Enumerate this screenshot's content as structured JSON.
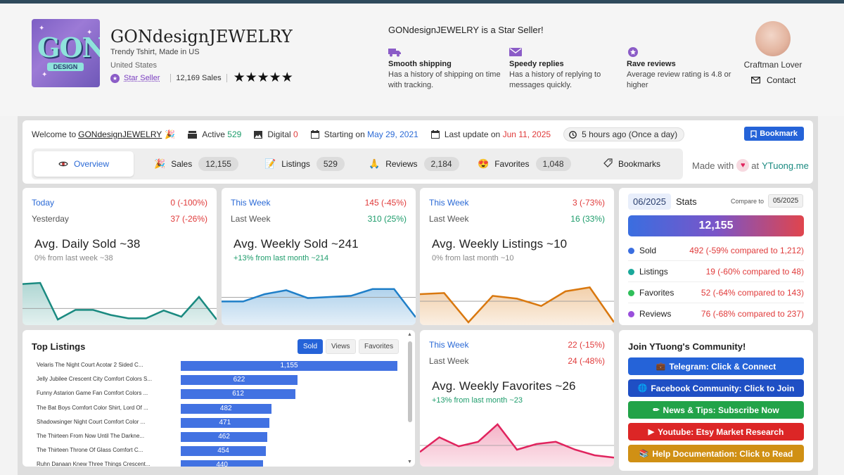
{
  "shop": {
    "name": "GONdesignJEWELRY",
    "tagline": "Trendy Tshirt, Made in US",
    "location": "United States",
    "star_seller_label": "Star Seller",
    "sales": "12,169 Sales",
    "rating_stars": "★★★★★",
    "logo_text": "GON",
    "logo_sub": "DESIGN"
  },
  "seller_perks": {
    "heading": "GONdesignJEWELRY is a Star Seller!",
    "items": [
      {
        "title": "Smooth shipping",
        "desc": "Has a history of shipping on time with tracking.",
        "icon": "truck-icon"
      },
      {
        "title": "Speedy replies",
        "desc": "Has a history of replying to messages quickly.",
        "icon": "envelope-icon"
      },
      {
        "title": "Rave reviews",
        "desc": "Average review rating is 4.8 or higher",
        "icon": "star-badge-icon"
      }
    ]
  },
  "owner": {
    "name": "Craftman Lover",
    "contact_label": "Contact"
  },
  "welcome": {
    "prefix": "Welcome to",
    "shop_link": "GONdesignJEWELRY",
    "emoji": "🎉",
    "active_label": "Active",
    "active_value": "529",
    "digital_label": "Digital",
    "digital_value": "0",
    "start_label": "Starting on",
    "start_value": "May 29, 2021",
    "update_label": "Last update on",
    "update_value": "Jun 11, 2025",
    "refresh": "5 hours ago (Once a day)",
    "bookmark_btn": "Bookmark"
  },
  "tabs": [
    {
      "label": "Overview",
      "count": "",
      "icon": "eye-icon"
    },
    {
      "label": "Sales",
      "count": "12,155",
      "icon": "party-icon"
    },
    {
      "label": "Listings",
      "count": "529",
      "icon": "notepad-icon"
    },
    {
      "label": "Reviews",
      "count": "2,184",
      "icon": "hands-icon"
    },
    {
      "label": "Favorites",
      "count": "1,048",
      "icon": "heart-eyes-icon"
    },
    {
      "label": "Bookmarks",
      "count": "",
      "icon": "tag-icon"
    }
  ],
  "made_with": {
    "prefix": "Made with",
    "at": "at",
    "brand": "YTuong.me"
  },
  "cards": {
    "daily_sold": {
      "r1_label": "Today",
      "r1_value": "0 (-100%)",
      "r2_label": "Yesterday",
      "r2_value": "37 (-26%)",
      "title": "Avg. Daily Sold ~38",
      "sub": "0% from last week ~38",
      "color": "#1a8a80"
    },
    "weekly_sold": {
      "r1_label": "This Week",
      "r1_value": "145 (-45%)",
      "r2_label": "Last Week",
      "r2_value": "310 (25%)",
      "title": "Avg. Weekly Sold ~241",
      "sub": "+13% from last month ~214",
      "color": "#1f7fc8"
    },
    "weekly_listings": {
      "r1_label": "This Week",
      "r1_value": "3 (-73%)",
      "r2_label": "Last Week",
      "r2_value": "16 (33%)",
      "title": "Avg. Weekly Listings ~10",
      "sub": "0% from last month ~10",
      "color": "#d9780f"
    },
    "weekly_favorites": {
      "r1_label": "This Week",
      "r1_value": "22 (-15%)",
      "r2_label": "Last Week",
      "r2_value": "24 (-48%)",
      "title": "Avg. Weekly Favorites ~26",
      "sub": "+13% from last month ~23",
      "color": "#e0245e"
    }
  },
  "sparklines": {
    "daily_sold": [
      73,
      75,
      10,
      27,
      27,
      18,
      12,
      12,
      26,
      15,
      50,
      10
    ],
    "weekly_sold": [
      42,
      42,
      55,
      62,
      48,
      50,
      52,
      64,
      64,
      14
    ],
    "weekly_listings": [
      55,
      57,
      5,
      52,
      47,
      34,
      60,
      67,
      5
    ],
    "weekly_favorites": [
      26,
      52,
      36,
      44,
      75,
      30,
      40,
      44,
      30,
      20,
      16
    ]
  },
  "stats": {
    "month": "06/2025",
    "label": "Stats",
    "compare_label": "Compare to",
    "compare_month": "05/2025",
    "total": "12,155",
    "rows": [
      {
        "name": "Sold",
        "value": "492 (-59% compared to 1,212)",
        "color": "#3a6ee0"
      },
      {
        "name": "Listings",
        "value": "19 (-60% compared to 48)",
        "color": "#1aa89a"
      },
      {
        "name": "Favorites",
        "value": "52 (-64% compared to 143)",
        "color": "#2fbf5a"
      },
      {
        "name": "Reviews",
        "value": "76 (-68% compared to 237)",
        "color": "#9a4fdc"
      }
    ]
  },
  "top_listings": {
    "title": "Top Listings",
    "buttons": [
      "Sold",
      "Views",
      "Favorites"
    ],
    "max": 1155,
    "rows": [
      {
        "name": "Velaris The Night Court Acotar 2 Sided C...",
        "value": 1155,
        "label": "1,155"
      },
      {
        "name": "Jelly Jubilee Crescent City Comfort Colors S...",
        "value": 622,
        "label": "622"
      },
      {
        "name": "Funny Astarion Game Fan Comfort Colors ...",
        "value": 612,
        "label": "612"
      },
      {
        "name": "The Bat Boys Comfort Color Shirt, Lord Of ...",
        "value": 482,
        "label": "482"
      },
      {
        "name": "Shadowsinger Night Court Comfort Color ...",
        "value": 471,
        "label": "471"
      },
      {
        "name": "The Thirteen From Now Until The Darkne...",
        "value": 462,
        "label": "462"
      },
      {
        "name": "The Thirteen Throne Of Glass Comfort C...",
        "value": 454,
        "label": "454"
      },
      {
        "name": "Ruhn Danaan Knew Three Things Crescent...",
        "value": 440,
        "label": "440"
      }
    ]
  },
  "community": {
    "title": "Join YTuong's Community!",
    "buttons": [
      {
        "label": "Telegram: Click & Connect",
        "icon": "💼",
        "color": "#2563d8"
      },
      {
        "label": "Facebook Community: Click to Join",
        "icon": "🌐",
        "color": "#1f4fc4"
      },
      {
        "label": "News & Tips: Subscribe Now",
        "icon": "✏",
        "color": "#22a348"
      },
      {
        "label": "Youtube: Etsy Market Research",
        "icon": "▶",
        "color": "#dc2626"
      },
      {
        "label": "Help Documentation: Click to Read",
        "icon": "📚",
        "color": "#d09014"
      }
    ]
  }
}
